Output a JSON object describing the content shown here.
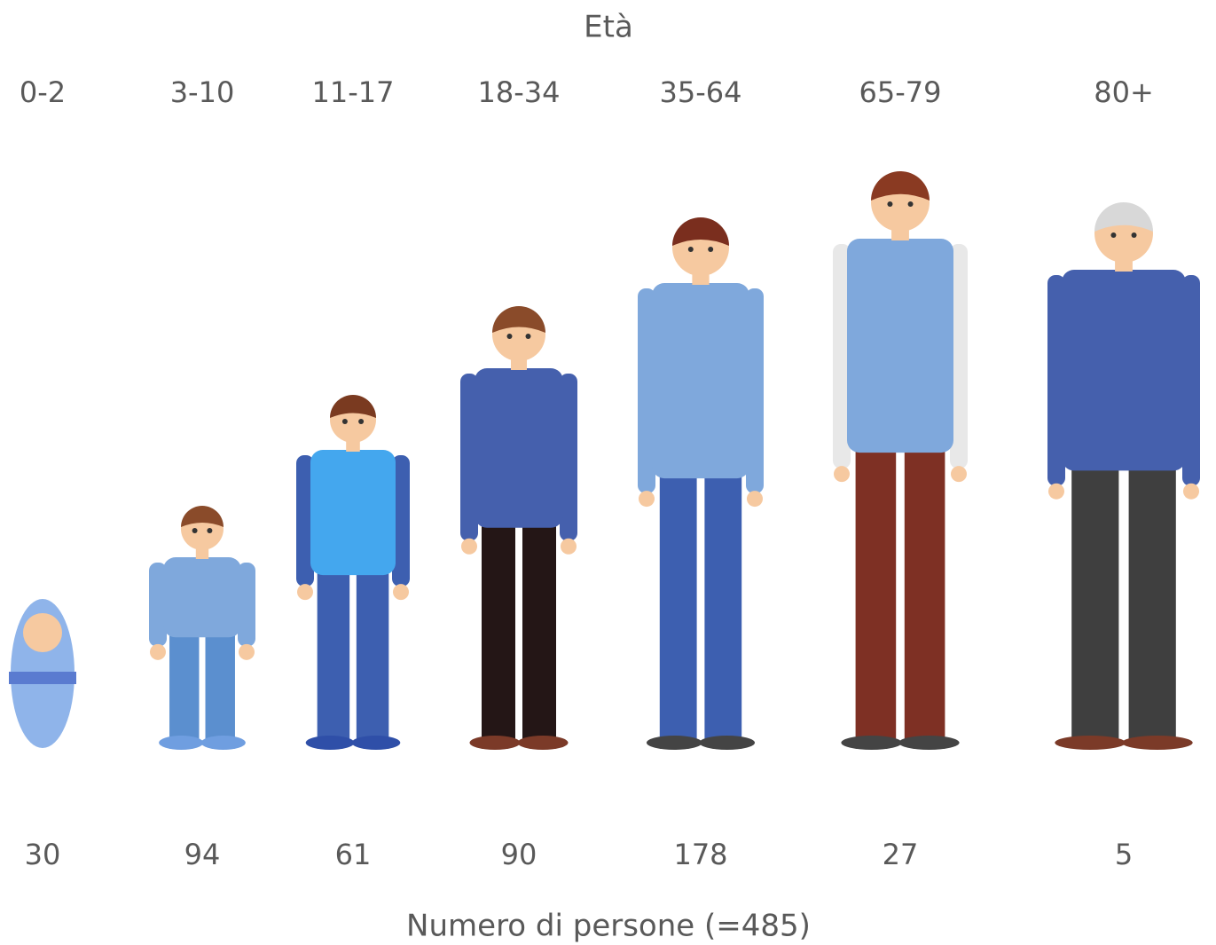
{
  "header": {
    "title": "Età"
  },
  "groups": [
    {
      "label": "0-2",
      "count": "30"
    },
    {
      "label": "3-10",
      "count": "94"
    },
    {
      "label": "11-17",
      "count": "61"
    },
    {
      "label": "18-34",
      "count": "90"
    },
    {
      "label": "35-64",
      "count": "178"
    },
    {
      "label": "65-79",
      "count": "27"
    },
    {
      "label": "80+",
      "count": "5"
    }
  ],
  "footer": {
    "caption": "Numero di persone (=485)"
  }
}
